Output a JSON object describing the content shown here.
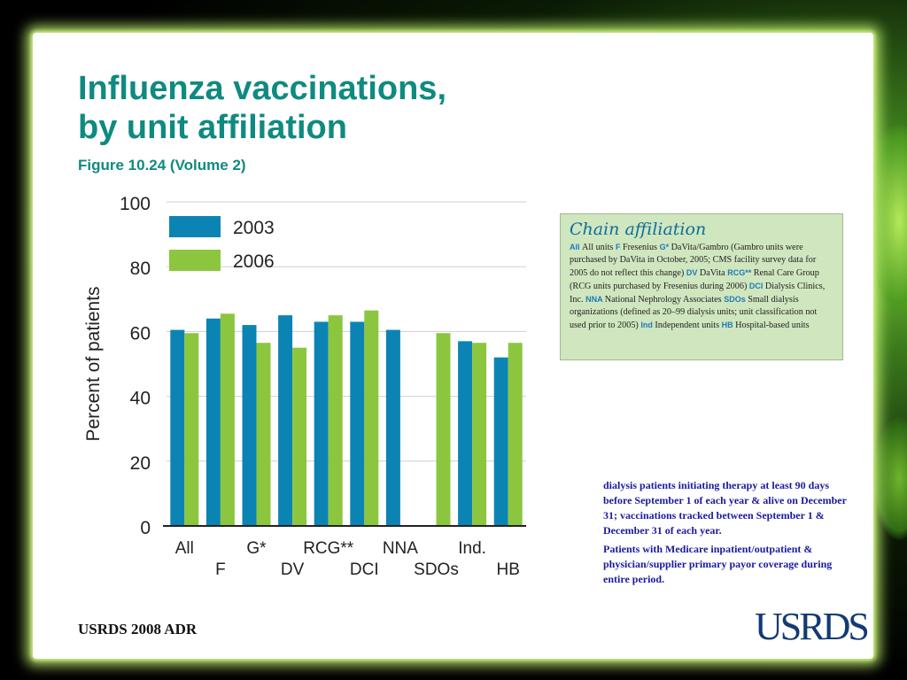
{
  "slide": {
    "title_line1": "Influenza vaccinations,",
    "title_line2": "by unit affiliation",
    "subtitle": "Figure 10.24 (Volume 2)",
    "footer": "USRDS 2008 ADR",
    "logo": "USRDS"
  },
  "legend_box": {
    "heading": "Chain affiliation",
    "entries": [
      {
        "code": "All",
        "text": "All units"
      },
      {
        "code": "F",
        "text": "Fresenius"
      },
      {
        "code": "G*",
        "text": "DaVita/Gambro (Gambro units were purchased by DaVita in October, 2005; CMS facility survey data for 2005 do not reflect this change)"
      },
      {
        "code": "DV",
        "text": "DaVita"
      },
      {
        "code": "RCG**",
        "text": "Renal Care Group (RCG units purchased by Fresenius during 2006)"
      },
      {
        "code": "DCI",
        "text": "Dialysis Clinics, Inc."
      },
      {
        "code": "NNA",
        "text": "National Nephrology Associates"
      },
      {
        "code": "SDOs",
        "text": "Small dialysis organizations (defined as 20–99 dialysis units; unit classification not used prior to 2005)"
      },
      {
        "code": "Ind",
        "text": "Independent units"
      },
      {
        "code": "HB",
        "text": "Hospital-based units"
      }
    ]
  },
  "notes": {
    "paragraph1": "dialysis patients initiating therapy at least 90 days before September 1 of each year & alive on December 31; vaccinations tracked between September 1 & December 31 of each year.",
    "paragraph2": "Patients with Medicare inpatient/outpatient & physician/supplier primary payor coverage during entire period."
  },
  "colors": {
    "series_2003": "#0b84b4",
    "series_2006": "#8cc63f",
    "title": "#0f8a80"
  },
  "chart_data": {
    "type": "bar",
    "ylabel": "Percent of patients",
    "xlabel": "",
    "ylim": [
      0,
      100
    ],
    "yticks": [
      0,
      20,
      40,
      60,
      80,
      100
    ],
    "grid": false,
    "legend_position": "top-left",
    "categories": [
      "All",
      "F",
      "G*",
      "DV",
      "RCG**",
      "DCI",
      "NNA",
      "SDOs",
      "Ind.",
      "HB"
    ],
    "series": [
      {
        "name": "2003",
        "values": [
          60.5,
          64,
          62,
          65,
          63,
          63,
          60.5,
          null,
          57,
          52
        ]
      },
      {
        "name": "2006",
        "values": [
          59.5,
          65.5,
          56.5,
          55,
          65,
          66.5,
          null,
          59.5,
          56.5,
          56.5
        ]
      }
    ]
  }
}
